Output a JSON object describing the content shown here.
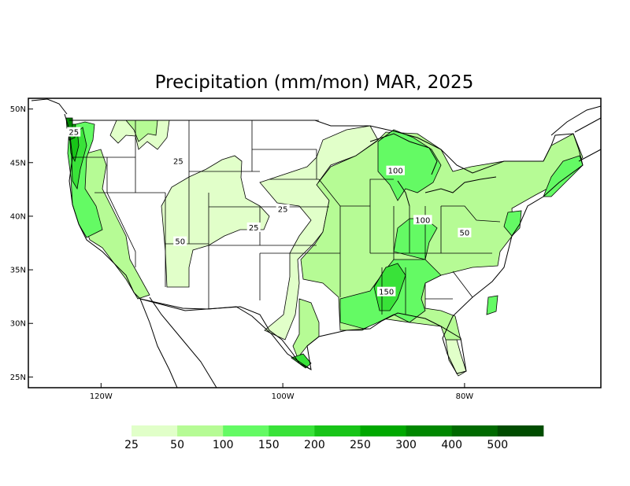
{
  "title": "Precipitation (mm/mon) MAR, 2025",
  "map": {
    "lon_range": [
      -128,
      -65
    ],
    "lat_range": [
      24,
      51
    ],
    "lat_ticks": [
      {
        "value": 50,
        "label": "50N"
      },
      {
        "value": 45,
        "label": "45N"
      },
      {
        "value": 40,
        "label": "40N"
      },
      {
        "value": 35,
        "label": "35N"
      },
      {
        "value": 30,
        "label": "30N"
      },
      {
        "value": 25,
        "label": "25N"
      }
    ],
    "lon_ticks": [
      {
        "value": -120,
        "label": "120W"
      },
      {
        "value": -100,
        "label": "100W"
      },
      {
        "value": -80,
        "label": "80W"
      }
    ],
    "contour_labels": [
      {
        "text": "25",
        "lon": -123,
        "lat": 47.8
      },
      {
        "text": "25",
        "lon": -111.5,
        "lat": 45.1
      },
      {
        "text": "25",
        "lon": -100,
        "lat": 40.6
      },
      {
        "text": "25",
        "lon": -103.2,
        "lat": 38.9
      },
      {
        "text": "50",
        "lon": -111.3,
        "lat": 37.6
      },
      {
        "text": "50",
        "lon": -80,
        "lat": 38.4
      },
      {
        "text": "100",
        "lon": -87.6,
        "lat": 44.2
      },
      {
        "text": "100",
        "lon": -84.6,
        "lat": 39.6
      },
      {
        "text": "150",
        "lon": -88.6,
        "lat": 32.9
      }
    ]
  },
  "legend": {
    "colors": [
      "#e1ffc9",
      "#b6fb95",
      "#64fa64",
      "#39e239",
      "#18c418",
      "#00a800",
      "#008700",
      "#006a00",
      "#004c00"
    ],
    "labels": [
      "25",
      "50",
      "100",
      "150",
      "200",
      "250",
      "300",
      "400",
      "500"
    ]
  }
}
